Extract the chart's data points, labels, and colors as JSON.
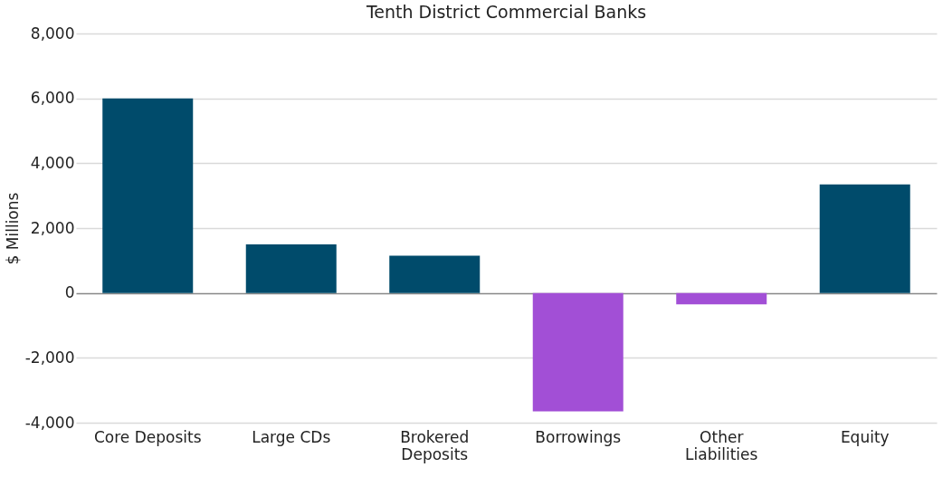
{
  "chart_data": {
    "type": "bar",
    "title": "Tenth District Commercial Banks",
    "ylabel": "$ Millions",
    "categories": [
      "Core Deposits",
      "Large CDs",
      "Brokered\nDeposits",
      "Borrowings",
      "Other\nLiabilities",
      "Equity"
    ],
    "values": [
      6000,
      1500,
      1150,
      -3650,
      -350,
      3350
    ],
    "colors": [
      "#004b6b",
      "#004b6b",
      "#004b6b",
      "#a24fd6",
      "#a24fd6",
      "#004b6b"
    ],
    "ylim": [
      -4000,
      8000
    ],
    "yticks": [
      {
        "value": -4000,
        "label": "-4,000"
      },
      {
        "value": -2000,
        "label": "-2,000"
      },
      0,
      {
        "value": 2000,
        "label": "2,000"
      },
      {
        "value": 4000,
        "label": "4,000"
      },
      {
        "value": 6000,
        "label": "6,000"
      },
      {
        "value": 8000,
        "label": "8,000"
      }
    ],
    "grid": "y"
  }
}
